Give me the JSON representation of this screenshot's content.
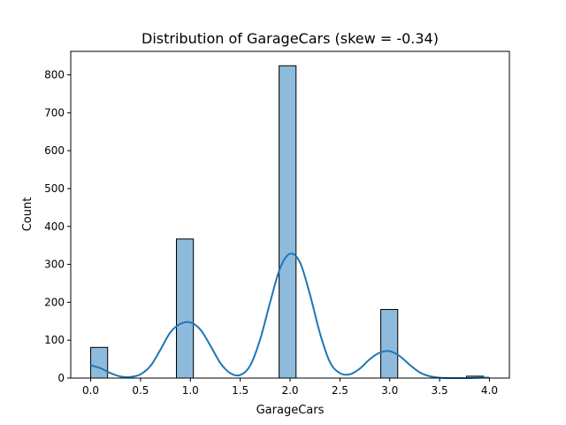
{
  "chart_data": {
    "type": "bar",
    "title": "Distribution of GarageCars (skew = -0.34)",
    "xlabel": "GarageCars",
    "ylabel": "Count",
    "xlim": [
      -0.2,
      4.2
    ],
    "ylim": [
      0,
      862
    ],
    "xticks": [
      0.0,
      0.5,
      1.0,
      1.5,
      2.0,
      2.5,
      3.0,
      3.5,
      4.0
    ],
    "xtick_labels": [
      "0.0",
      "0.5",
      "1.0",
      "1.5",
      "2.0",
      "2.5",
      "3.0",
      "3.5",
      "4.0"
    ],
    "yticks": [
      0,
      100,
      200,
      300,
      400,
      500,
      600,
      700,
      800
    ],
    "ytick_labels": [
      "0",
      "100",
      "200",
      "300",
      "400",
      "500",
      "600",
      "700",
      "800"
    ],
    "bins": [
      {
        "x0": 0.0,
        "x1": 0.17,
        "count": 81
      },
      {
        "x0": 0.86,
        "x1": 1.03,
        "count": 367
      },
      {
        "x0": 1.89,
        "x1": 2.06,
        "count": 824
      },
      {
        "x0": 2.91,
        "x1": 3.08,
        "count": 181
      },
      {
        "x0": 3.77,
        "x1": 3.94,
        "count": 5
      }
    ],
    "kde": {
      "x": [
        0.0,
        0.1,
        0.2,
        0.3,
        0.4,
        0.5,
        0.6,
        0.7,
        0.8,
        0.9,
        1.0,
        1.1,
        1.2,
        1.3,
        1.4,
        1.5,
        1.6,
        1.7,
        1.8,
        1.9,
        2.0,
        2.1,
        2.2,
        2.3,
        2.4,
        2.5,
        2.6,
        2.7,
        2.8,
        2.9,
        3.0,
        3.1,
        3.2,
        3.3,
        3.4,
        3.5,
        3.6,
        3.7,
        3.8,
        3.9,
        4.0
      ],
      "y": [
        34,
        26,
        13,
        4,
        3,
        10,
        32,
        75,
        121,
        143,
        147,
        128,
        86,
        40,
        13,
        8,
        33,
        102,
        200,
        290,
        328,
        305,
        220,
        118,
        42,
        13,
        10,
        25,
        50,
        67,
        71,
        58,
        35,
        15,
        5,
        1,
        0,
        0,
        0,
        1,
        1
      ]
    },
    "bar_color": "#8ebbdb",
    "bar_edge_color": "#000000",
    "line_color": "#1f77b4",
    "grid": false,
    "legend": "none"
  }
}
